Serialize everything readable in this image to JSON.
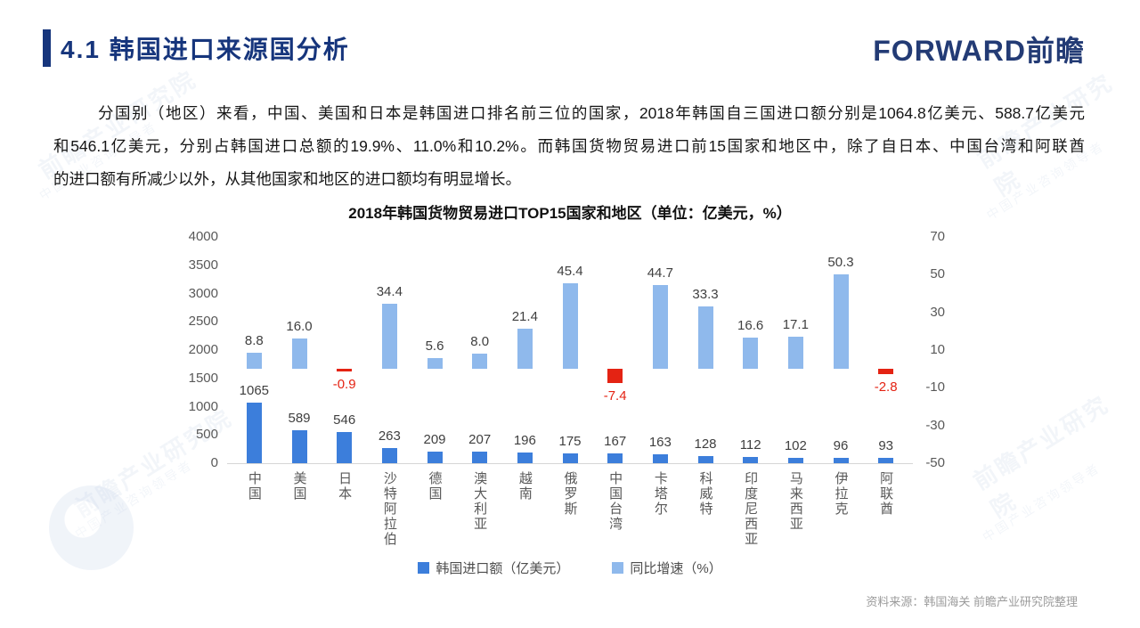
{
  "header": {
    "title": "4.1 韩国进口来源国分析",
    "logo_text": "FORWARD前瞻"
  },
  "paragraph": {
    "lines": [
      "分国别（地区）来看，中国、美国和日本是韩国进口排名前三位的国家，2018年韩国自三国进口额分别是1064.8亿美元、588.7亿美元",
      "和546.1亿美元，分别占韩国进口总额的19.9%、11.0%和10.2%。而韩国货物贸易进口前15国家和地区中，除了自日本、中国台湾和阿联酋",
      "的进口额有所减少以外，从其他国家和地区的进口额均有明显增长。"
    ]
  },
  "chart_data": {
    "type": "bar",
    "title": "2018年韩国货物贸易进口TOP15国家和地区（单位：亿美元，%）",
    "categories": [
      "中国",
      "美国",
      "日本",
      "沙特阿拉伯",
      "德国",
      "澳大利亚",
      "越南",
      "俄罗斯",
      "中国台湾",
      "卡塔尔",
      "科威特",
      "印度尼西亚",
      "马来西亚",
      "伊拉克",
      "阿联酋"
    ],
    "series": [
      {
        "name": "韩国进口额（亿美元）",
        "axis": "left",
        "color": "#3c7edb",
        "values": [
          1065,
          589,
          546,
          263,
          209,
          207,
          196,
          175,
          167,
          163,
          128,
          112,
          102,
          96,
          93
        ]
      },
      {
        "name": "同比增速（%）",
        "axis": "right",
        "color": "#8fb9ec",
        "negative_color": "#e42313",
        "values": [
          8.8,
          16.0,
          -0.9,
          34.4,
          5.6,
          8.0,
          21.4,
          45.4,
          -7.4,
          44.7,
          33.3,
          16.6,
          17.1,
          50.3,
          -2.8
        ]
      }
    ],
    "left_axis": {
      "min": 0,
      "max": 4000,
      "ticks": [
        4000,
        3500,
        3000,
        2500,
        2000,
        1500,
        1000,
        500,
        0
      ]
    },
    "right_axis": {
      "min": -50,
      "max": 70,
      "ticks": [
        70,
        50,
        30,
        10,
        -10,
        -30,
        -50
      ]
    },
    "legend_position": "bottom",
    "grid": false
  },
  "footer": {
    "source": "资料来源：韩国海关  前瞻产业研究院整理"
  },
  "watermark": {
    "brand": "前瞻产业研究院",
    "slogan": "中国产业咨询领导者"
  },
  "colors": {
    "accent_navy": "#16357c",
    "import_bar": "#3c7edb",
    "growth_bar": "#8fb9ec",
    "negative_red": "#e42313",
    "axis_text": "#595959",
    "source_text": "#9b9b9b"
  }
}
